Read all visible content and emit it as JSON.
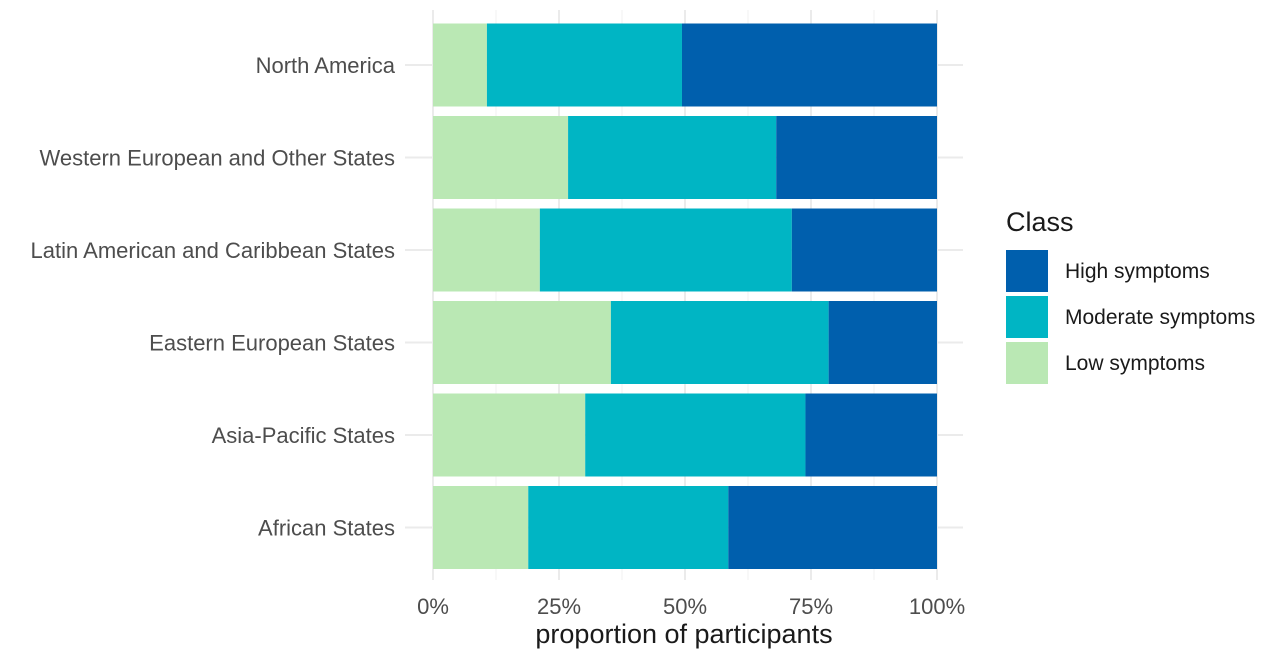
{
  "chart_data": {
    "type": "bar",
    "orientation": "horizontal",
    "stacked": true,
    "categories": [
      "North America",
      "Western European and Other States",
      "Latin American and Caribbean States",
      "Eastern European States",
      "Asia-Pacific States",
      "African States"
    ],
    "series": [
      {
        "name": "Low symptoms",
        "color": "#baE8b4",
        "values": [
          0.107,
          0.268,
          0.212,
          0.353,
          0.302,
          0.189
        ]
      },
      {
        "name": "Moderate symptoms",
        "color": "#00b5c4",
        "values": [
          0.387,
          0.413,
          0.5,
          0.432,
          0.437,
          0.397
        ]
      },
      {
        "name": "High symptoms",
        "color": "#005fad",
        "values": [
          0.506,
          0.319,
          0.288,
          0.215,
          0.261,
          0.414
        ]
      }
    ],
    "xlabel": "proportion of participants",
    "ylabel": "",
    "xlim": [
      0,
      1
    ],
    "ticks": [
      "0%",
      "25%",
      "50%",
      "75%",
      "100%"
    ],
    "tick_values": [
      0,
      0.25,
      0.5,
      0.75,
      1
    ],
    "legend": {
      "title": "Class",
      "position": "right",
      "entries": [
        "High symptoms",
        "Moderate symptoms",
        "Low symptoms"
      ]
    },
    "grid": true
  }
}
